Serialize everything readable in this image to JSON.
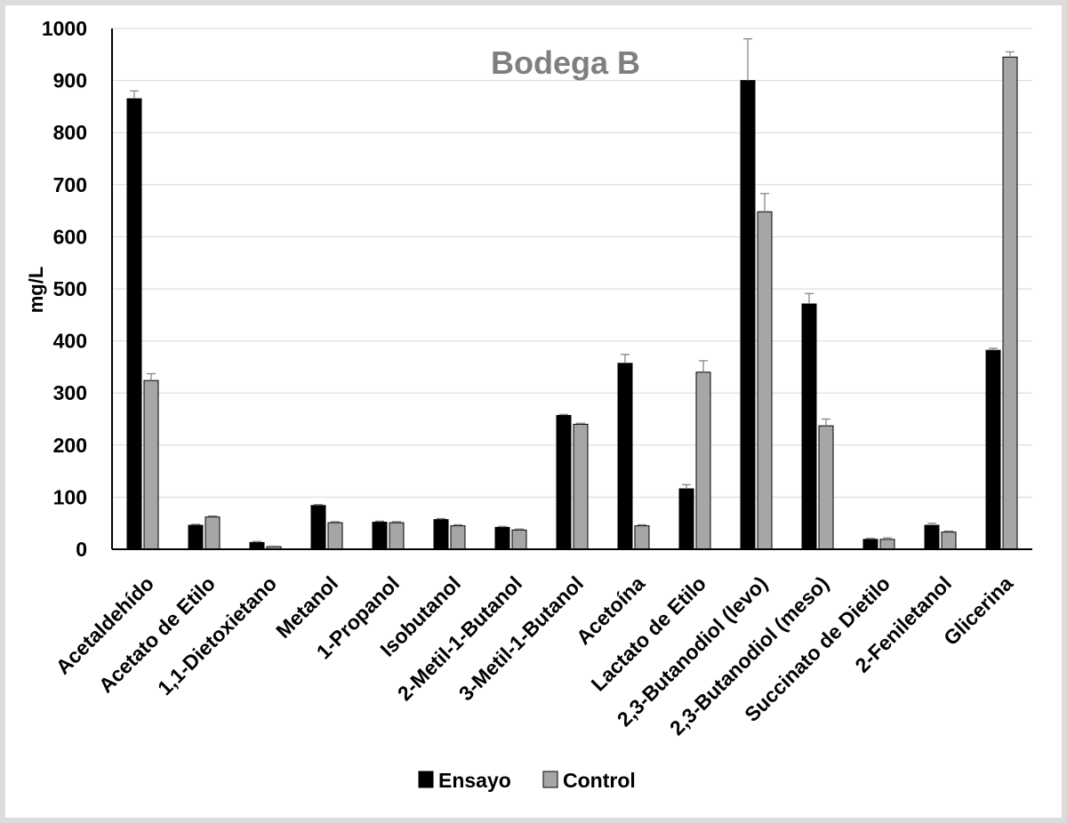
{
  "chart_data": {
    "type": "bar",
    "title": "Bodega B",
    "xlabel": "",
    "ylabel": "mg/L",
    "ylim": [
      0,
      1000
    ],
    "yticks": [
      0,
      100,
      200,
      300,
      400,
      500,
      600,
      700,
      800,
      900,
      1000
    ],
    "grid": true,
    "legend_position": "bottom",
    "categories": [
      "Acetaldehído",
      "Acetato de Etilo",
      "1,1-Dietoxietano",
      "Metanol",
      "1-Propanol",
      "Isobutanol",
      "2-Metil-1-Butanol",
      "3-Metil-1-Butanol",
      "Acetoína",
      "Lactato de Etilo",
      "2,3-Butanodiol (levo)",
      "2,3-Butanodiol (meso)",
      "Succinato de Dietilo",
      "2-Feniletanol",
      "Glicerina"
    ],
    "series": [
      {
        "name": "Ensayo",
        "color": "#000000",
        "values": [
          865,
          46,
          13,
          84,
          52,
          57,
          42,
          257,
          357,
          116,
          900,
          471,
          19,
          46,
          382
        ],
        "errors": [
          15,
          2,
          2,
          2,
          2,
          2,
          2,
          2,
          17,
          8,
          80,
          20,
          2,
          4,
          4
        ]
      },
      {
        "name": "Control",
        "color": "#a6a6a6",
        "values": [
          324,
          62,
          5,
          51,
          51,
          45,
          37,
          240,
          45,
          340,
          648,
          237,
          19,
          33,
          945
        ],
        "errors": [
          13,
          2,
          1,
          2,
          2,
          2,
          2,
          2,
          2,
          22,
          35,
          13,
          3,
          2,
          10
        ]
      }
    ],
    "title_color": "#7f7f7f"
  }
}
